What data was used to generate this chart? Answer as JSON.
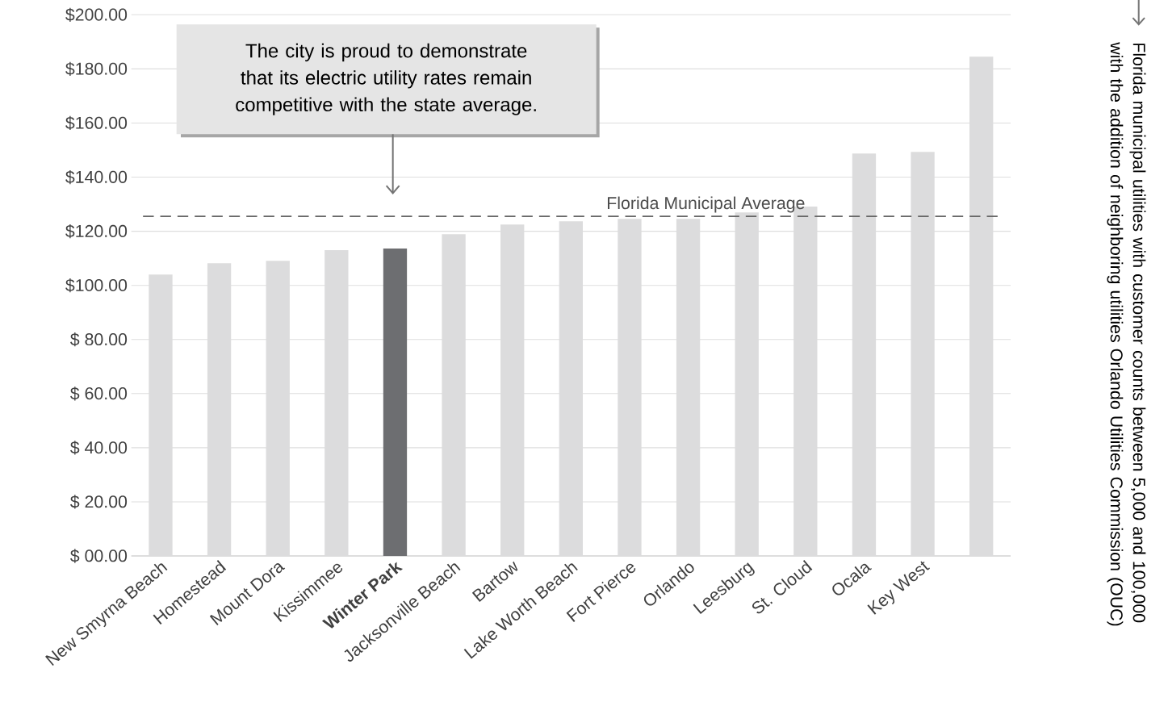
{
  "chart_data": {
    "type": "bar",
    "categories": [
      "New Smyrna Beach",
      "Homestead",
      "Mount Dora",
      "Kissimmee",
      "**Winter Park**",
      "Jacksonville Beach",
      "Bartow",
      "Lake Worth Beach",
      "Fort Pierce",
      "Orlando",
      "Leesburg",
      "St. Cloud",
      "Ocala",
      "Key West",
      null
    ],
    "values": [
      104.0,
      108.2,
      109.1,
      113.0,
      113.6,
      118.9,
      122.5,
      123.7,
      124.6,
      124.6,
      127.0,
      129.1,
      148.7,
      149.3,
      184.5
    ],
    "colors": [
      "#dcdcdd",
      "#dcdcdd",
      "#dcdcdd",
      "#dcdcdd",
      "#6d6e71",
      "#dcdcdd",
      "#dcdcdd",
      "#dcdcdd",
      "#dcdcdd",
      "#dcdcdd",
      "#dcdcdd",
      "#dcdcdd",
      "#dcdcdd",
      "#dcdcdd",
      "#dcdcdd"
    ],
    "ylim": [
      0,
      200
    ],
    "yticks": [
      {
        "value": 0,
        "label": "$ 00.00"
      },
      {
        "value": 20,
        "label": "$ 20.00"
      },
      {
        "value": 40,
        "label": "$ 40.00"
      },
      {
        "value": 60,
        "label": "$ 60.00"
      },
      {
        "value": 80,
        "label": "$ 80.00"
      },
      {
        "value": 100,
        "label": "$100.00"
      },
      {
        "value": 120,
        "label": "$120.00"
      },
      {
        "value": 140,
        "label": "$140.00"
      },
      {
        "value": 160,
        "label": "$160.00"
      },
      {
        "value": 180,
        "label": "$180.00"
      },
      {
        "value": 200,
        "label": "$200.00"
      }
    ],
    "grid": "y",
    "ref_lines": [
      {
        "axis": "y",
        "value": 125.5,
        "label": "Florida Municipal Average",
        "color": "#666666",
        "line_style": "dashed"
      }
    ],
    "annotations": [
      "The city is proud to demonstrate that its electric utility rates remain competitive with the state average.",
      "Florida municipal utilities with customer counts between 5,000 and 100,000 with the addition of neighboring utilities Orlando Utilities Commission (OUC)"
    ]
  }
}
